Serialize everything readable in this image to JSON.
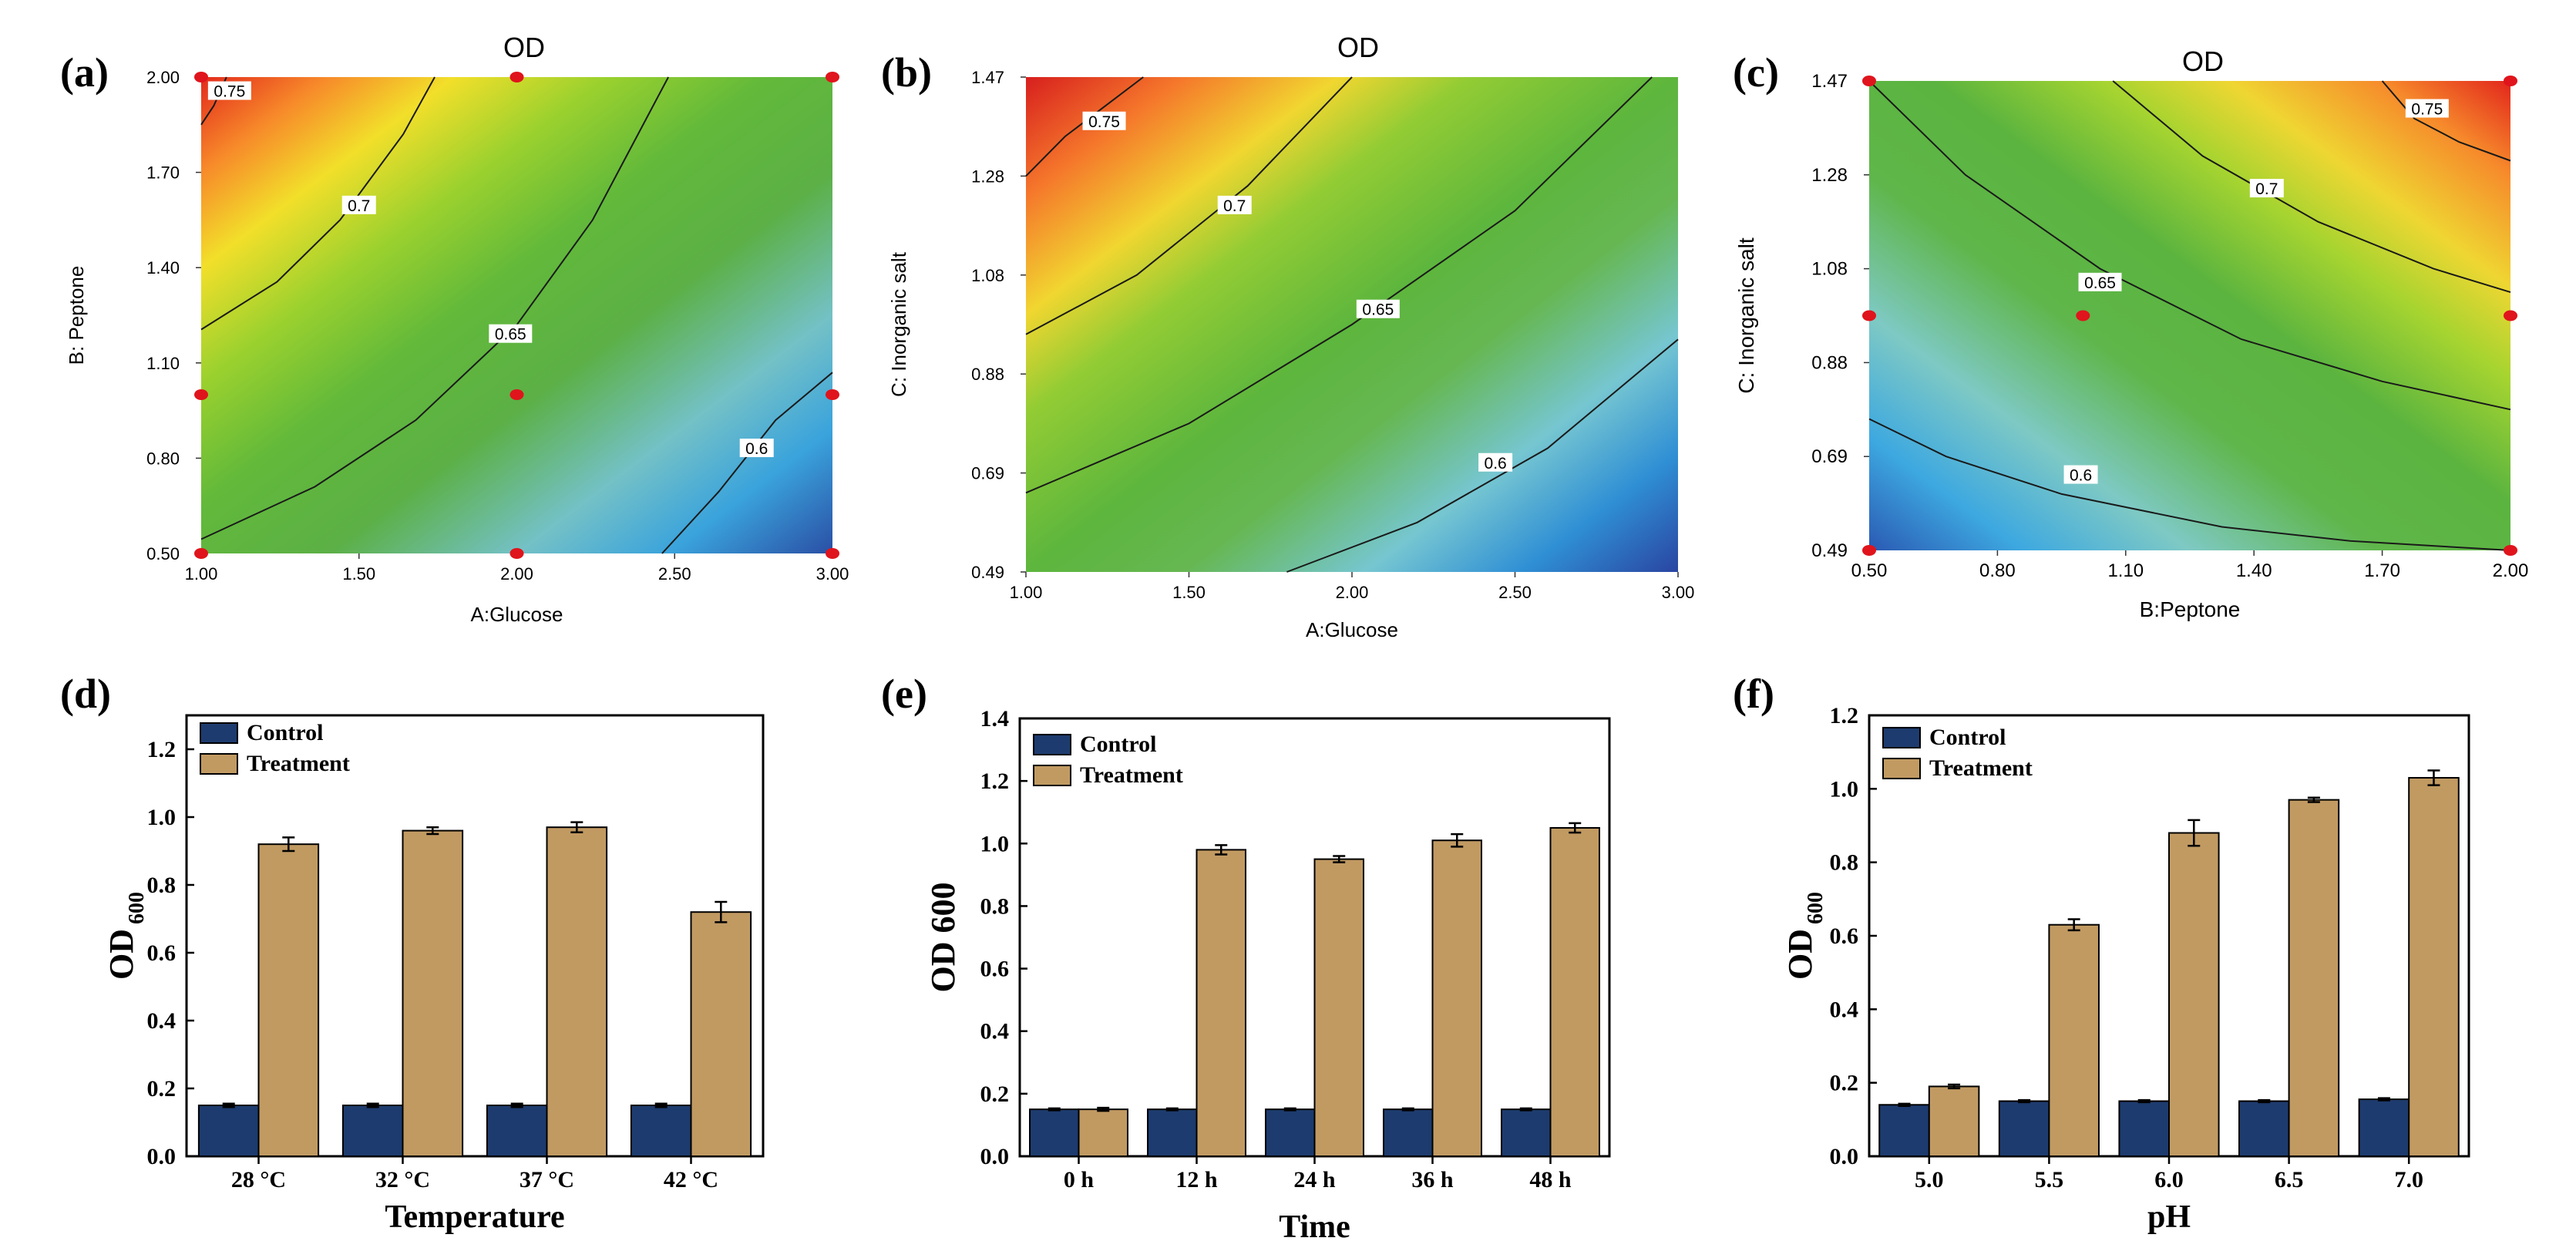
{
  "colors": {
    "control": "#1d3b6e",
    "treatment": "#c19a62",
    "design_point": "#e0141c",
    "contour_line": "#1a1a1a"
  },
  "chart_data": [
    {
      "panel": "(a)",
      "type": "contour",
      "title": "OD",
      "xlabel": "A:Glucose",
      "ylabel": "B: Peptone",
      "xlim": [
        1.0,
        3.0
      ],
      "ylim": [
        0.5,
        2.0
      ],
      "xticks": [
        "1.00",
        "1.50",
        "2.00",
        "2.50",
        "3.00"
      ],
      "yticks": [
        "0.50",
        "0.80",
        "1.10",
        "1.40",
        "1.70",
        "2.00"
      ],
      "contour_levels": [
        "0.75",
        "0.7",
        "0.65",
        "0.6"
      ],
      "design_points": [
        [
          1.0,
          2.0
        ],
        [
          2.0,
          2.0
        ],
        [
          3.0,
          2.0
        ],
        [
          1.0,
          1.0
        ],
        [
          2.0,
          1.0
        ],
        [
          3.0,
          1.0
        ],
        [
          1.0,
          0.5
        ],
        [
          2.0,
          0.5
        ],
        [
          3.0,
          0.5
        ]
      ]
    },
    {
      "panel": "(b)",
      "type": "contour",
      "title": "OD",
      "xlabel": "A:Glucose",
      "ylabel": "C: Inorganic salt",
      "xlim": [
        1.0,
        3.0
      ],
      "ylim": [
        0.49,
        1.47
      ],
      "xticks": [
        "1.00",
        "1.50",
        "2.00",
        "2.50",
        "3.00"
      ],
      "yticks": [
        "0.49",
        "0.69",
        "0.88",
        "1.08",
        "1.28",
        "1.47"
      ],
      "contour_levels": [
        "0.75",
        "0.7",
        "0.65",
        "0.6"
      ],
      "design_points": []
    },
    {
      "panel": "(c)",
      "type": "contour",
      "title": "OD",
      "xlabel": "B:Peptone",
      "ylabel": "C: Inorganic salt",
      "xlim": [
        0.5,
        2.0
      ],
      "ylim": [
        0.49,
        1.47
      ],
      "xticks": [
        "0.50",
        "0.80",
        "1.10",
        "1.40",
        "1.70",
        "2.00"
      ],
      "yticks": [
        "0.49",
        "0.69",
        "0.88",
        "1.08",
        "1.28",
        "1.47"
      ],
      "contour_levels": [
        "0.75",
        "0.7",
        "0.65",
        "0.6"
      ],
      "design_points": [
        [
          0.5,
          1.47
        ],
        [
          2.0,
          1.47
        ],
        [
          0.5,
          0.98
        ],
        [
          1.0,
          0.98
        ],
        [
          2.0,
          0.98
        ],
        [
          0.5,
          0.49
        ],
        [
          2.0,
          0.49
        ]
      ]
    },
    {
      "panel": "(d)",
      "type": "bar",
      "xlabel": "Temperature",
      "ylabel": "OD",
      "ylabel_sub": "600",
      "categories": [
        "28 °C",
        "32 °C",
        "37 °C",
        "42 °C"
      ],
      "ylim": [
        0,
        1.3
      ],
      "yticks": [
        "0.0",
        "0.2",
        "0.4",
        "0.6",
        "0.8",
        "1.0",
        "1.2"
      ],
      "legend": "top-left",
      "series": [
        {
          "name": "Control",
          "values": [
            0.15,
            0.15,
            0.15,
            0.15
          ],
          "errors": [
            0.005,
            0.005,
            0.005,
            0.005
          ]
        },
        {
          "name": "Treatment",
          "values": [
            0.92,
            0.96,
            0.97,
            0.72
          ],
          "errors": [
            0.02,
            0.01,
            0.015,
            0.03
          ]
        }
      ]
    },
    {
      "panel": "(e)",
      "type": "bar",
      "xlabel": "Time",
      "ylabel": "OD 600",
      "ylabel_sub": "",
      "categories": [
        "0 h",
        "12 h",
        "24 h",
        "36 h",
        "48 h"
      ],
      "ylim": [
        0,
        1.4
      ],
      "yticks": [
        "0.0",
        "0.2",
        "0.4",
        "0.6",
        "0.8",
        "1.0",
        "1.2",
        "1.4"
      ],
      "legend": "top-left",
      "series": [
        {
          "name": "Control",
          "values": [
            0.15,
            0.15,
            0.15,
            0.15,
            0.15
          ],
          "errors": [
            0.003,
            0.003,
            0.003,
            0.003,
            0.003
          ]
        },
        {
          "name": "Treatment",
          "values": [
            0.15,
            0.98,
            0.95,
            1.01,
            1.05
          ],
          "errors": [
            0.005,
            0.015,
            0.01,
            0.02,
            0.015
          ]
        }
      ]
    },
    {
      "panel": "(f)",
      "type": "bar",
      "xlabel": "pH",
      "ylabel": "OD",
      "ylabel_sub": "600",
      "categories": [
        "5.0",
        "5.5",
        "6.0",
        "6.5",
        "7.0"
      ],
      "ylim": [
        0,
        1.2
      ],
      "yticks": [
        "0.0",
        "0.2",
        "0.4",
        "0.6",
        "0.8",
        "1.0",
        "1.2"
      ],
      "legend": "top-left",
      "series": [
        {
          "name": "Control",
          "values": [
            0.14,
            0.15,
            0.15,
            0.15,
            0.155
          ],
          "errors": [
            0.003,
            0.003,
            0.003,
            0.003,
            0.003
          ]
        },
        {
          "name": "Treatment",
          "values": [
            0.19,
            0.63,
            0.88,
            0.97,
            1.03
          ],
          "errors": [
            0.005,
            0.015,
            0.035,
            0.006,
            0.02
          ]
        }
      ]
    }
  ]
}
